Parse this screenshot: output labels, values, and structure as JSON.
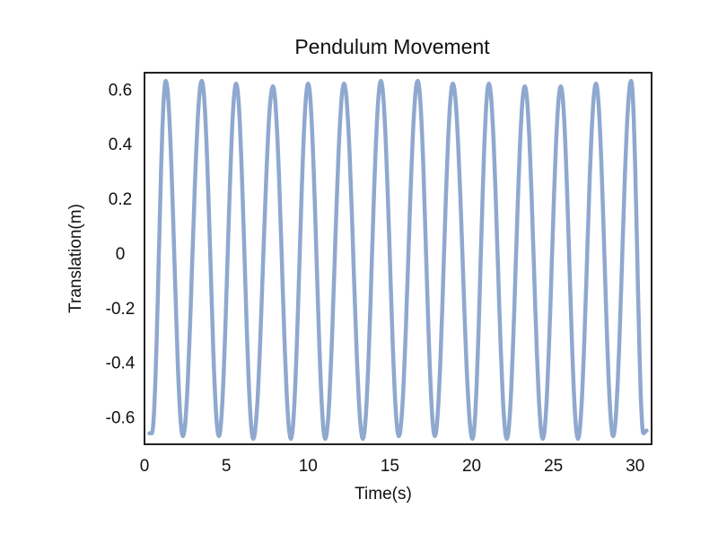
{
  "chart_data": {
    "type": "line",
    "title": "Pendulum Movement",
    "xlabel": "Time(s)",
    "ylabel": "Translation(m)",
    "xlim": [
      0,
      31
    ],
    "ylim": [
      -0.7,
      0.66
    ],
    "x_ticks": [
      0,
      5,
      10,
      15,
      20,
      25,
      30
    ],
    "x_tick_labels": [
      "0",
      "5",
      "10",
      "15",
      "20",
      "25",
      "30"
    ],
    "y_ticks": [
      0.6,
      0.4,
      0.2,
      0,
      -0.2,
      -0.4,
      -0.6
    ],
    "y_tick_labels": [
      "0.6",
      "0.4",
      "0.2",
      "0",
      "-0.2",
      "-0.4",
      "-0.6"
    ],
    "grid": false,
    "legend": "none",
    "line_color": "#8fa8cf",
    "series": [
      {
        "x": [
          0.3,
          0.45,
          1.3,
          2.35,
          3.5,
          4.55,
          5.6,
          6.65,
          7.85,
          8.95,
          10.0,
          11.05,
          12.2,
          13.35,
          14.45,
          15.55,
          16.7,
          17.75,
          18.85,
          20.05,
          21.05,
          22.15,
          23.25,
          24.35,
          25.45,
          26.5,
          27.6,
          28.65,
          29.75,
          30.5,
          30.7
        ],
        "y": [
          -0.66,
          -0.66,
          0.63,
          -0.67,
          0.63,
          -0.67,
          0.62,
          -0.68,
          0.61,
          -0.68,
          0.62,
          -0.68,
          0.62,
          -0.68,
          0.63,
          -0.67,
          0.63,
          -0.67,
          0.62,
          -0.68,
          0.62,
          -0.68,
          0.61,
          -0.68,
          0.61,
          -0.68,
          0.62,
          -0.67,
          0.63,
          -0.66,
          -0.65
        ]
      }
    ]
  }
}
